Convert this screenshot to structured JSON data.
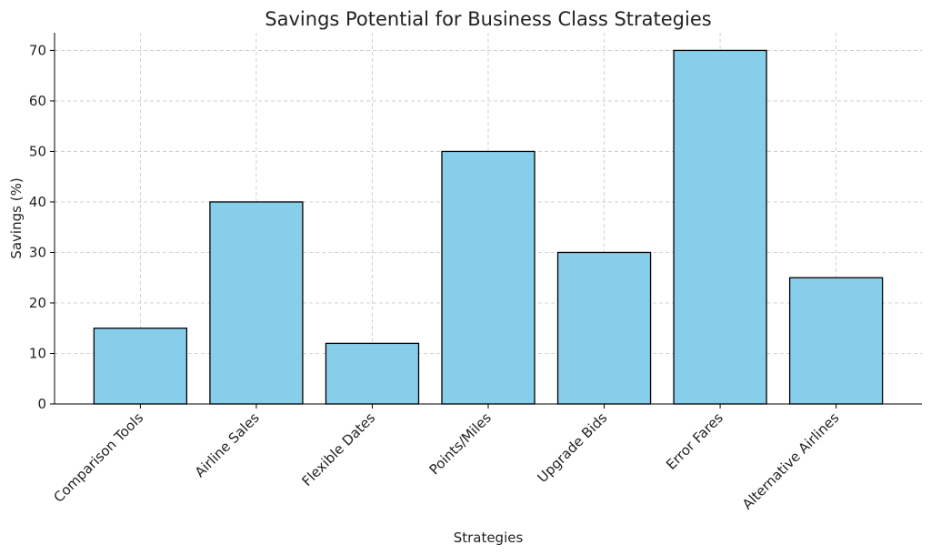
{
  "chart_data": {
    "type": "bar",
    "title": "Savings Potential for Business Class Strategies",
    "x_label": "Strategies",
    "y_label": "Savings (%)",
    "categories": [
      "Comparison Tools",
      "Airline Sales",
      "Flexible Dates",
      "Points/Miles",
      "Upgrade Bids",
      "Error Fares",
      "Alternative Airlines"
    ],
    "values": [
      15,
      40,
      12,
      50,
      30,
      70,
      25
    ],
    "color": "#87ceeb",
    "edge_color": "#000000",
    "ylim": [
      0,
      73.5
    ],
    "yticks": [
      0,
      10,
      20,
      30,
      40,
      50,
      60,
      70
    ],
    "grid": true
  }
}
